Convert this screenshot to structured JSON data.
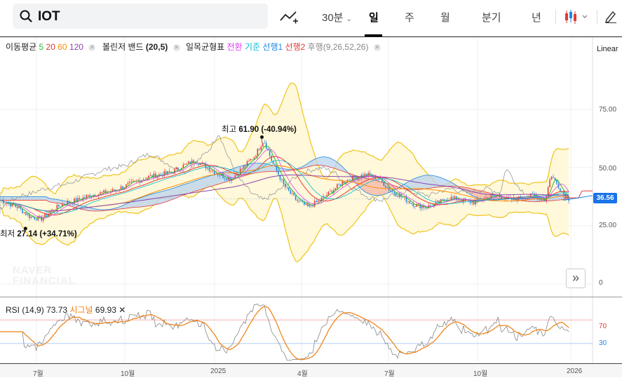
{
  "search": {
    "query": "IOT"
  },
  "periods": [
    {
      "label": "30분",
      "has_dropdown": true
    },
    {
      "label": "일",
      "active": true
    },
    {
      "label": "주"
    },
    {
      "label": "월"
    },
    {
      "label": "분기"
    },
    {
      "label": "년"
    }
  ],
  "indicators": {
    "ma": {
      "name": "이동평균",
      "p1": "5",
      "p2": "20",
      "p3": "60",
      "p4": "120",
      "colors": {
        "p1": "#2eb82e",
        "p2": "#e53935",
        "p3": "#ff8c00",
        "p4": "#8e44ad"
      }
    },
    "bollinger": {
      "name": "볼린저 밴드",
      "params": "(20,5)"
    },
    "ichimoku": {
      "name": "일목균형표",
      "l1": "전환",
      "l2": "기준",
      "l3": "선행1",
      "l4": "선행2",
      "l5": "후행",
      "params": "(9,26,52,26)",
      "colors": {
        "l1": "#e040fb",
        "l2": "#00bcd4",
        "l3": "#1e88e5",
        "l4": "#e53935",
        "l5": "#888888"
      }
    }
  },
  "scale_mode": "Linear",
  "y_axis": [
    "75.00",
    "50.00",
    "25.00",
    "0"
  ],
  "last_price": "36.56",
  "annotations": {
    "high": {
      "label": "최고",
      "value": "61.90 (-40.94%)"
    },
    "low": {
      "label": "최저",
      "value": "27.14 (+34.71%)"
    }
  },
  "watermark": {
    "line1": "NAVER",
    "line2": "FINANCIAL"
  },
  "rsi": {
    "name": "RSI",
    "params": "(14,9)",
    "value": "73.73",
    "signal_label": "시그널",
    "signal_value": "69.93",
    "upper": "70",
    "lower": "30"
  },
  "x_axis": [
    "7월",
    "10월",
    "2025",
    "4월",
    "7월",
    "10월",
    "2026"
  ],
  "chart_data": {
    "type": "line",
    "title": "IOT",
    "y_ticks": [
      0,
      25,
      50,
      75
    ],
    "x_ticks": [
      "7월",
      "10월",
      "2025",
      "4월",
      "7월",
      "10월",
      "2026"
    ],
    "ma_periods": [
      5,
      20,
      60,
      120
    ],
    "series_close_approx": [
      [
        0,
        36
      ],
      [
        0.03,
        33
      ],
      [
        0.05,
        29
      ],
      [
        0.07,
        28
      ],
      [
        0.09,
        32
      ],
      [
        0.11,
        35
      ],
      [
        0.13,
        36
      ],
      [
        0.15,
        38
      ],
      [
        0.17,
        39
      ],
      [
        0.19,
        40
      ],
      [
        0.21,
        42
      ],
      [
        0.23,
        44
      ],
      [
        0.25,
        46
      ],
      [
        0.27,
        47
      ],
      [
        0.29,
        48
      ],
      [
        0.31,
        51
      ],
      [
        0.33,
        53
      ],
      [
        0.35,
        50
      ],
      [
        0.37,
        47
      ],
      [
        0.39,
        45
      ],
      [
        0.41,
        50
      ],
      [
        0.43,
        55
      ],
      [
        0.445,
        62
      ],
      [
        0.46,
        52
      ],
      [
        0.48,
        42
      ],
      [
        0.5,
        36
      ],
      [
        0.52,
        33
      ],
      [
        0.54,
        36
      ],
      [
        0.56,
        40
      ],
      [
        0.58,
        44
      ],
      [
        0.6,
        46
      ],
      [
        0.62,
        47
      ],
      [
        0.64,
        45
      ],
      [
        0.66,
        40
      ],
      [
        0.68,
        37
      ],
      [
        0.7,
        34
      ],
      [
        0.72,
        33
      ],
      [
        0.74,
        35
      ],
      [
        0.76,
        37
      ],
      [
        0.78,
        36
      ],
      [
        0.8,
        35
      ],
      [
        0.82,
        37
      ],
      [
        0.84,
        38
      ],
      [
        0.86,
        36
      ],
      [
        0.88,
        37
      ],
      [
        0.9,
        38
      ],
      [
        0.92,
        36
      ],
      [
        0.93,
        47
      ],
      [
        0.95,
        39
      ],
      [
        0.96,
        36.56
      ]
    ],
    "high": 61.9,
    "low": 27.14,
    "last": 36.56,
    "rsi_levels": [
      70,
      30
    ]
  }
}
